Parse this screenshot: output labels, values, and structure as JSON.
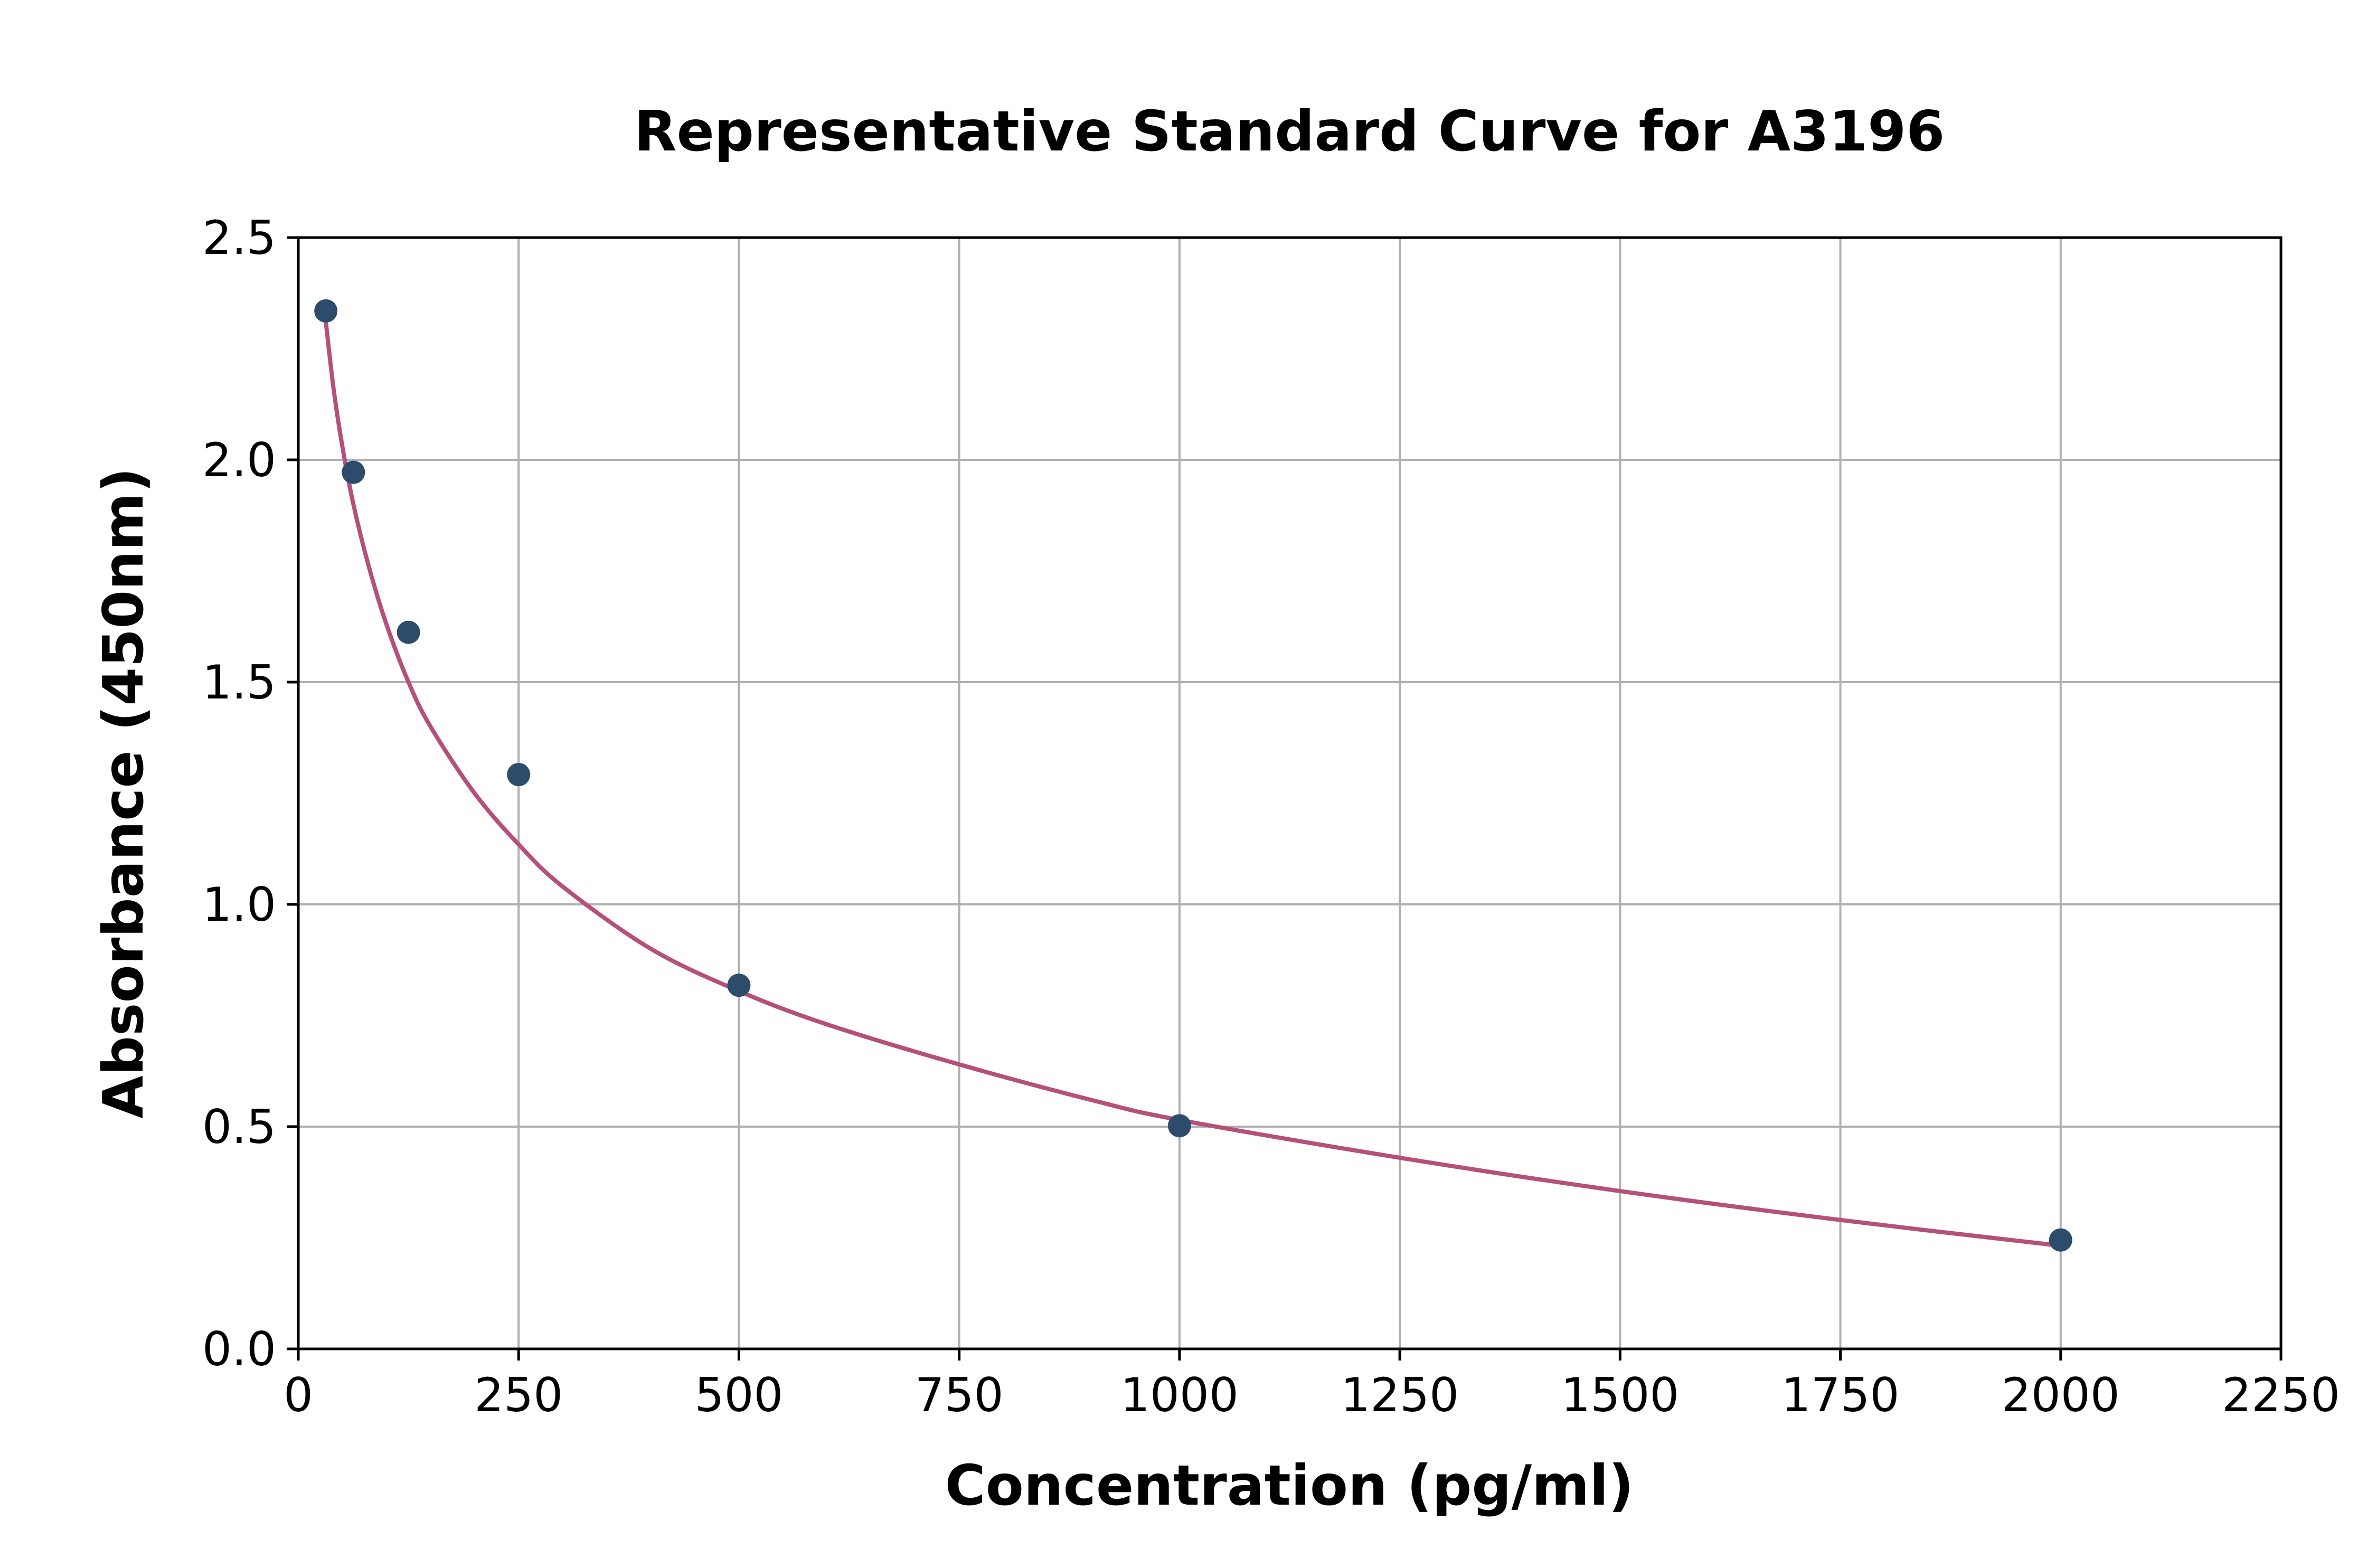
{
  "chart_data": {
    "type": "scatter",
    "title": "Representative Standard Curve for A3196",
    "xlabel": "Concentration (pg/ml)",
    "ylabel": "Absorbance (450nm)",
    "xlim": [
      0,
      2250
    ],
    "ylim": [
      0,
      2.5
    ],
    "xticks": [
      0,
      250,
      500,
      750,
      1000,
      1250,
      1500,
      1750,
      2000,
      2250
    ],
    "yticks": [
      0.0,
      0.5,
      1.0,
      1.5,
      2.0,
      2.5
    ],
    "xtick_labels": [
      "0",
      "250",
      "500",
      "750",
      "1000",
      "1250",
      "1500",
      "1750",
      "2000",
      "2250"
    ],
    "ytick_labels": [
      "0.0",
      "0.5",
      "1.0",
      "1.5",
      "2.0",
      "2.5"
    ],
    "grid": true,
    "series": [
      {
        "kind": "points",
        "x": [
          31.25,
          62.5,
          125,
          250,
          500,
          1000,
          2000
        ],
        "y": [
          2.335,
          1.972,
          1.612,
          1.292,
          0.818,
          0.502,
          0.245
        ],
        "color": "#2d4b6b"
      },
      {
        "kind": "fit-curve",
        "x": [
          31.25,
          40,
          50,
          62.5,
          80,
          100,
          125,
          150,
          200,
          250,
          300,
          400,
          500,
          600,
          750,
          900,
          1000,
          1250,
          1500,
          1750,
          2000
        ],
        "y": [
          2.31,
          2.16,
          2.03,
          1.9,
          1.76,
          1.63,
          1.5,
          1.4,
          1.25,
          1.135,
          1.04,
          0.9,
          0.805,
          0.73,
          0.64,
          0.56,
          0.515,
          0.43,
          0.355,
          0.29,
          0.232
        ],
        "color": "#b5507a"
      }
    ]
  }
}
